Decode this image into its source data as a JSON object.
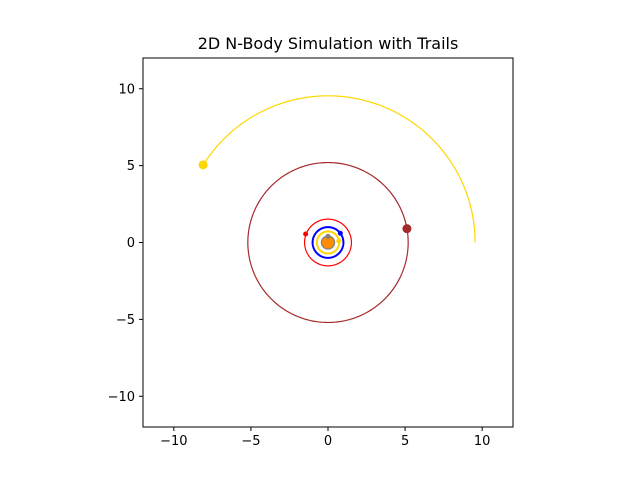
{
  "chart_data": {
    "type": "line",
    "title": "2D N-Body Simulation with Trails",
    "xlabel": "",
    "ylabel": "",
    "xlim": [
      -12,
      12
    ],
    "ylim": [
      -12,
      12
    ],
    "x_ticks": [
      -10,
      -5,
      0,
      5,
      10
    ],
    "y_ticks": [
      -10,
      -5,
      0,
      5,
      10
    ],
    "x_tick_labels": [
      "−10",
      "−5",
      "0",
      "5",
      "10"
    ],
    "y_tick_labels": [
      "−10",
      "−5",
      "0",
      "5",
      "10"
    ],
    "grid": false,
    "legend": "none",
    "aspect": "equal",
    "bodies": [
      {
        "color": "#ff8c00",
        "orbit_radius": 0.0,
        "trail_start_deg": 0,
        "trail_end_deg": 0,
        "position": [
          0.0,
          0.0
        ],
        "marker": "large"
      },
      {
        "color": "#808080",
        "orbit_radius": 0.4,
        "trail_start_deg": 0,
        "trail_end_deg": 360,
        "position": [
          0.0,
          0.4
        ],
        "marker": "small"
      },
      {
        "color": "#ffd700",
        "orbit_radius": 0.72,
        "trail_start_deg": 0,
        "trail_end_deg": 360,
        "position": [
          0.7,
          0.1
        ],
        "marker": "small"
      },
      {
        "color": "#0000ff",
        "orbit_radius": 1.0,
        "trail_start_deg": 0,
        "trail_end_deg": 360,
        "position": [
          0.8,
          0.6
        ],
        "marker": "small"
      },
      {
        "color": "#ff0000",
        "orbit_radius": 1.52,
        "trail_start_deg": 0,
        "trail_end_deg": 360,
        "position": [
          -1.45,
          0.55
        ],
        "marker": "small"
      },
      {
        "color": "#a52a2a",
        "orbit_radius": 5.2,
        "trail_start_deg": 0,
        "trail_end_deg": 370,
        "position": [
          5.12,
          0.9
        ],
        "marker": "medium"
      },
      {
        "color": "#ffd700",
        "orbit_radius": 9.54,
        "trail_start_deg": 0,
        "trail_end_deg": 148,
        "position": [
          -8.1,
          5.05
        ],
        "marker": "medium"
      }
    ]
  }
}
